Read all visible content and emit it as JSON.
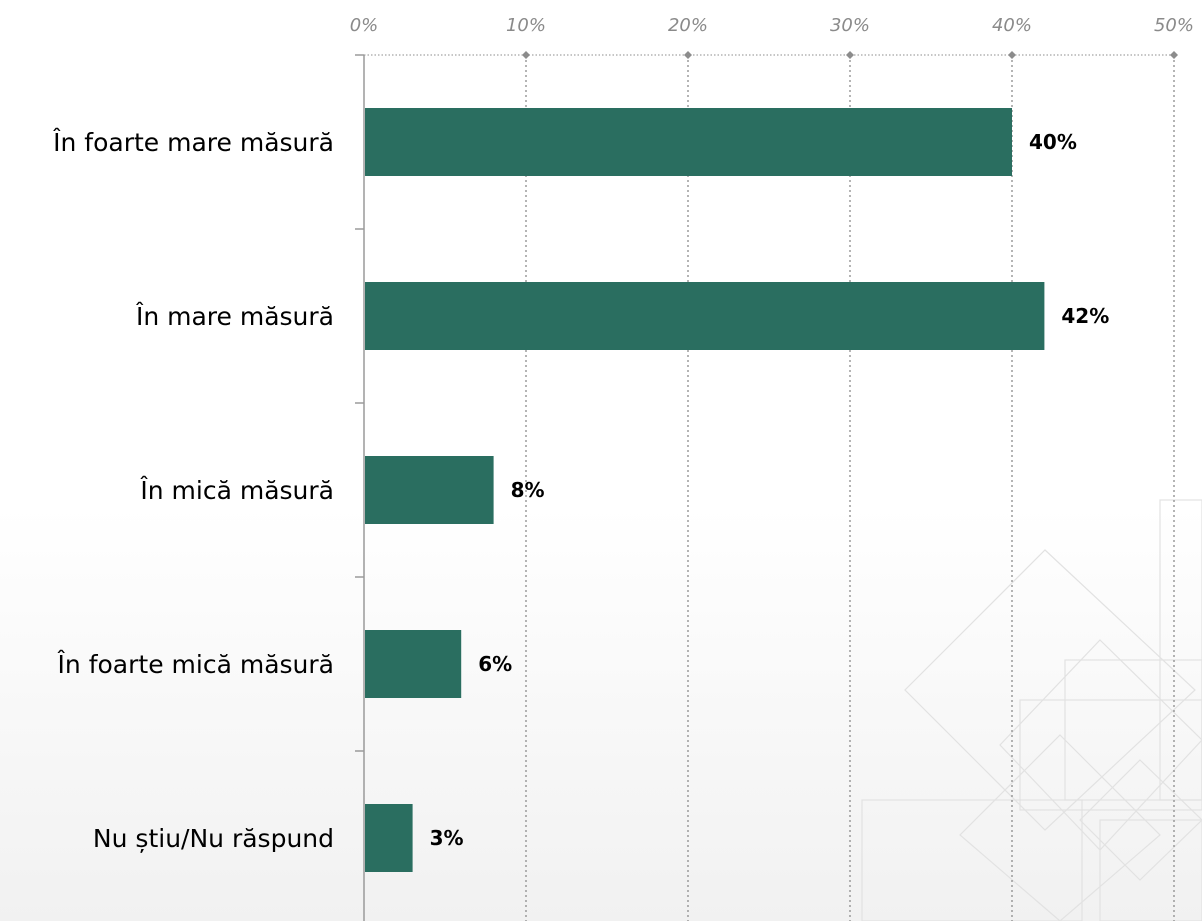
{
  "chart_data": {
    "type": "bar",
    "orientation": "horizontal",
    "categories": [
      "În foarte mare măsură",
      "În mare măsură",
      "În mică măsură",
      "În foarte mică măsură",
      "Nu știu/Nu răspund"
    ],
    "values": [
      40,
      42,
      8,
      6,
      3
    ],
    "data_labels": [
      "40%",
      "42%",
      "8%",
      "6%",
      "3%"
    ],
    "xlim": [
      0,
      50
    ],
    "x_ticks": [
      0,
      10,
      20,
      30,
      40,
      50
    ],
    "x_tick_labels": [
      "0%",
      "10%",
      "20%",
      "30%",
      "40%",
      "50%"
    ],
    "x_axis_position": "top",
    "grid": "vertical dotted",
    "legend": "none",
    "title": "",
    "xlabel": "",
    "ylabel": ""
  },
  "colors": {
    "bar": "#2a6e60",
    "grid": "#8c8c8c",
    "tick_label": "#8a8a8a",
    "axis": "#9a9a9a",
    "decor": "#e2e2e2"
  }
}
